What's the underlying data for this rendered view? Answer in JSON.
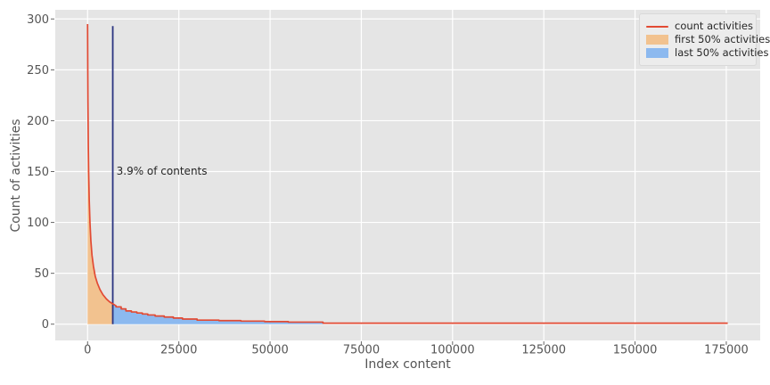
{
  "chart_data": {
    "type": "line",
    "title": "",
    "xlabel": "Index content",
    "ylabel": "Count of activities",
    "xlim": [
      -8860,
      184290
    ],
    "ylim": [
      -16,
      309
    ],
    "xticks": [
      0,
      25000,
      50000,
      75000,
      100000,
      125000,
      150000,
      175000
    ],
    "yticks": [
      0,
      50,
      100,
      150,
      200,
      250,
      300
    ],
    "grid": true,
    "legend_position": "top-right",
    "colors": {
      "figure_bg": "#ffffff",
      "panel_bg": "#e5e5e5",
      "grid": "#ffffff",
      "tick_text": "#555555",
      "tick_mark": "#666666",
      "line": "#e24a33",
      "first50_fill": "#f2c28f",
      "last50_fill": "#8cb9ef",
      "vline": "#2b3480",
      "annotation_text": "#262626"
    },
    "series": [
      {
        "name": "count activities",
        "color": "#e24a33",
        "points": [
          [
            0,
            295
          ],
          [
            50,
            250
          ],
          [
            100,
            218
          ],
          [
            200,
            175
          ],
          [
            300,
            148
          ],
          [
            450,
            122
          ],
          [
            650,
            100
          ],
          [
            900,
            82
          ],
          [
            1200,
            68
          ],
          [
            1600,
            57
          ],
          [
            2100,
            47
          ],
          [
            2700,
            40
          ],
          [
            3400,
            34
          ],
          [
            4200,
            29
          ],
          [
            5100,
            25
          ],
          [
            6000,
            22
          ],
          [
            6900,
            20
          ],
          [
            7800,
            18
          ],
          [
            7800,
            17
          ],
          [
            9200,
            17
          ],
          [
            9200,
            15
          ],
          [
            10500,
            15
          ],
          [
            10500,
            13
          ],
          [
            12000,
            13
          ],
          [
            12000,
            12
          ],
          [
            13500,
            12
          ],
          [
            13500,
            11
          ],
          [
            15000,
            11
          ],
          [
            15000,
            10
          ],
          [
            16500,
            10
          ],
          [
            16500,
            9
          ],
          [
            18500,
            9
          ],
          [
            18500,
            8
          ],
          [
            21000,
            8
          ],
          [
            21000,
            7
          ],
          [
            23500,
            7
          ],
          [
            23500,
            6
          ],
          [
            26000,
            6
          ],
          [
            26000,
            5
          ],
          [
            30000,
            5
          ],
          [
            30000,
            4
          ],
          [
            36000,
            4
          ],
          [
            36000,
            3.5
          ],
          [
            42000,
            3.5
          ],
          [
            42000,
            3
          ],
          [
            48500,
            3
          ],
          [
            48500,
            2.5
          ],
          [
            55000,
            2.5
          ],
          [
            55000,
            2
          ],
          [
            64500,
            2
          ],
          [
            64500,
            1
          ],
          [
            175400,
            1
          ]
        ]
      }
    ],
    "fills": [
      {
        "name": "first 50% activities",
        "color": "#f2c28f",
        "x_from": 0,
        "x_to": 6900
      },
      {
        "name": "last 50% activities",
        "color": "#8cb9ef",
        "x_from": 6900,
        "x_to": 64500
      }
    ],
    "vline": {
      "x": 6900,
      "y_from": 0,
      "y_to": 293,
      "color": "#2b3480"
    },
    "annotation": {
      "text": "3.9% of contents",
      "x": 7900,
      "y": 147,
      "color": "#262626"
    },
    "legend": {
      "items": [
        {
          "label": "count activities",
          "swatch": "line",
          "color": "#e24a33"
        },
        {
          "label": "first 50% activities",
          "swatch": "patch",
          "color": "#f2c28f"
        },
        {
          "label": "last 50% activities",
          "swatch": "patch",
          "color": "#8cb9ef"
        }
      ]
    }
  }
}
